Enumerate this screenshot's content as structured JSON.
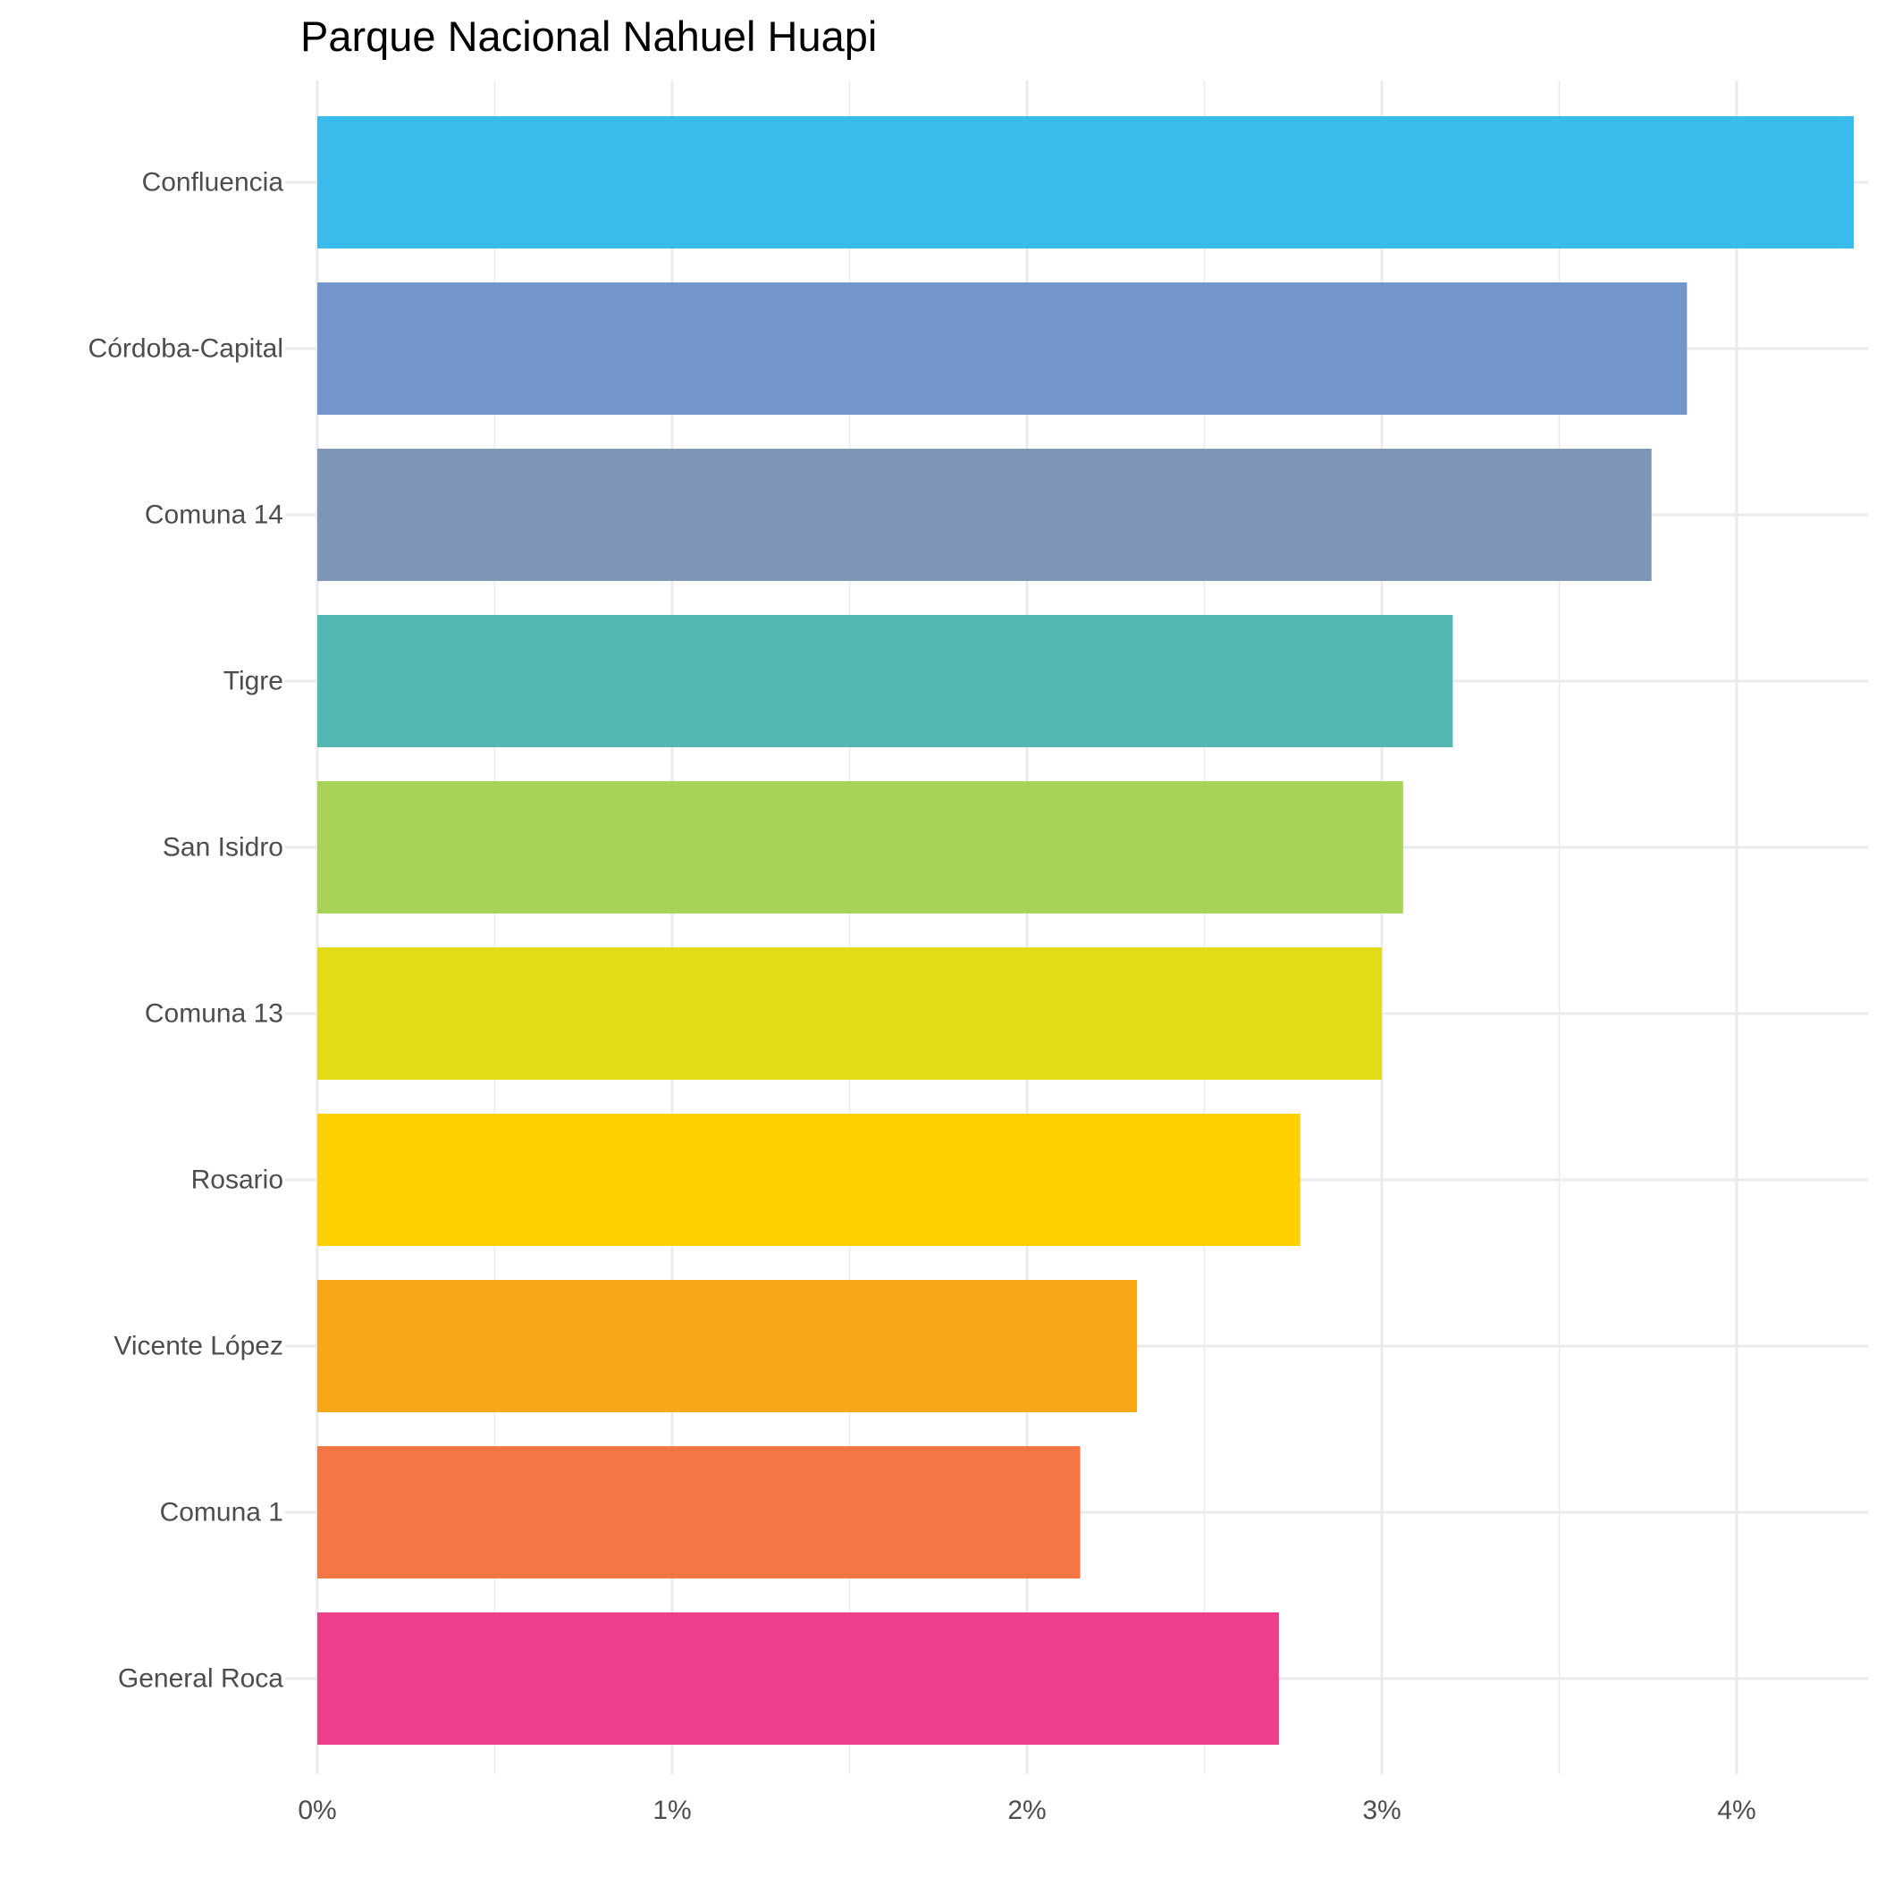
{
  "chart_data": {
    "type": "bar",
    "orientation": "horizontal",
    "title": "Parque Nacional Nahuel Huapi",
    "xlabel": "",
    "ylabel": "",
    "xlim": [
      0,
      4.37
    ],
    "x_ticks": [
      0,
      1,
      2,
      3,
      4
    ],
    "x_tick_labels": [
      "0%",
      "1%",
      "2%",
      "3%",
      "4%"
    ],
    "grid": true,
    "legend": "none",
    "categories": [
      "Confluencia",
      "Córdoba-Capital",
      "Comuna 14",
      "Tigre",
      "San Isidro",
      "Comuna 13",
      "Rosario",
      "Vicente López",
      "Comuna 1",
      "General Roca"
    ],
    "values": [
      4.33,
      3.86,
      3.76,
      3.2,
      3.06,
      3.0,
      2.77,
      2.31,
      2.15,
      2.71
    ],
    "colors": [
      "#3bbbec",
      "#7397cd",
      "#7d96b9",
      "#52b8b1",
      "#a8d356",
      "#e3db18",
      "#fed002",
      "#f9a717",
      "#f47645",
      "#ed3f8c"
    ]
  }
}
